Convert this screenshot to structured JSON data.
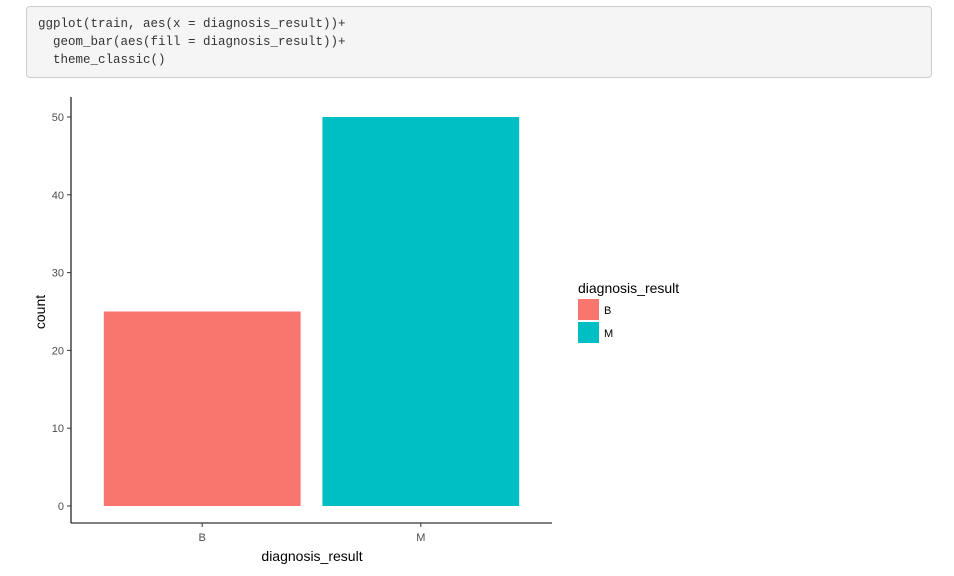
{
  "code": {
    "lines": [
      "ggplot(train, aes(x = diagnosis_result))+",
      "  geom_bar(aes(fill = diagnosis_result))+",
      "  theme_classic()"
    ]
  },
  "chart_data": {
    "type": "bar",
    "categories": [
      "B",
      "M"
    ],
    "values": [
      25,
      50
    ],
    "colors": [
      "#f8766d",
      "#00bfc4"
    ],
    "title": "",
    "xlabel": "diagnosis_result",
    "ylabel": "count",
    "ylim": [
      0,
      52.5
    ],
    "yticks": [
      0,
      10,
      20,
      30,
      40,
      50
    ],
    "grid": false,
    "legend": {
      "title": "diagnosis_result",
      "placement": "right",
      "entries": [
        "B",
        "M"
      ]
    }
  }
}
